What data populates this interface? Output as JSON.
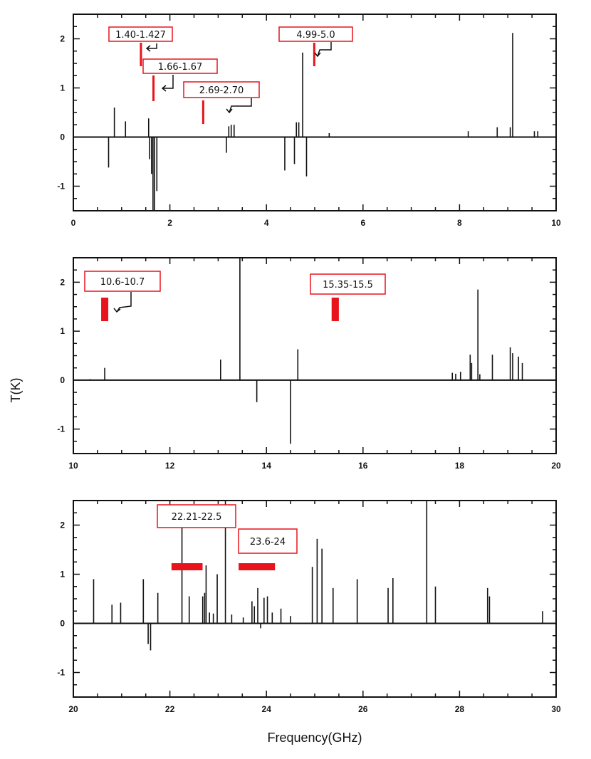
{
  "ylabel": "T(K)",
  "xlabel": "Frequency(GHz)",
  "annotation_color": "#e8141b",
  "chart_data": [
    {
      "type": "bar",
      "xlim": [
        0,
        10
      ],
      "ylim": [
        -1.5,
        2.5
      ],
      "x_ticks": [
        "0",
        "2",
        "4",
        "6",
        "8",
        "10"
      ],
      "y_ticks": [
        "2",
        "1",
        "0",
        "-1"
      ],
      "lines": [
        [
          0.73,
          -0.62
        ],
        [
          0.85,
          0.6
        ],
        [
          1.08,
          0.32
        ],
        [
          1.56,
          0.38
        ],
        [
          1.58,
          -0.45
        ],
        [
          1.62,
          -0.75
        ],
        [
          1.65,
          -1.5
        ],
        [
          1.68,
          -1.5
        ],
        [
          1.73,
          -1.1
        ],
        [
          3.17,
          -0.32
        ],
        [
          3.22,
          0.22
        ],
        [
          3.27,
          0.25
        ],
        [
          3.33,
          0.25
        ],
        [
          4.38,
          -0.68
        ],
        [
          4.58,
          -0.55
        ],
        [
          4.62,
          0.3
        ],
        [
          4.67,
          0.3
        ],
        [
          4.75,
          1.72
        ],
        [
          4.83,
          -0.8
        ],
        [
          5.3,
          0.08
        ],
        [
          8.18,
          0.12
        ],
        [
          8.78,
          0.2
        ],
        [
          9.05,
          0.2
        ],
        [
          9.1,
          2.12
        ],
        [
          9.55,
          0.12
        ],
        [
          9.62,
          0.12
        ]
      ],
      "bands": [
        {
          "label": "1.40-1.427",
          "range": [
            1.4,
            1.427
          ]
        },
        {
          "label": "1.66-1.67",
          "range": [
            1.66,
            1.67
          ]
        },
        {
          "label": "2.69-2.70",
          "range": [
            2.69,
            2.7
          ]
        },
        {
          "label": "4.99-5.0",
          "range": [
            4.99,
            5.0
          ]
        }
      ]
    },
    {
      "type": "bar",
      "xlim": [
        10,
        20
      ],
      "ylim": [
        -1.5,
        2.5
      ],
      "x_ticks": [
        "10",
        "12",
        "14",
        "16",
        "18",
        "20"
      ],
      "y_ticks": [
        "2",
        "1",
        "0",
        "-1"
      ],
      "lines": [
        [
          10.35,
          0.02
        ],
        [
          10.65,
          0.25
        ],
        [
          13.05,
          0.42
        ],
        [
          13.45,
          2.5
        ],
        [
          13.8,
          -0.45
        ],
        [
          14.5,
          -1.3
        ],
        [
          14.65,
          0.63
        ],
        [
          17.85,
          0.15
        ],
        [
          17.92,
          0.13
        ],
        [
          18.02,
          0.17
        ],
        [
          18.22,
          0.52
        ],
        [
          18.25,
          0.35
        ],
        [
          18.38,
          1.85
        ],
        [
          18.42,
          0.12
        ],
        [
          18.68,
          0.52
        ],
        [
          19.05,
          0.67
        ],
        [
          19.1,
          0.55
        ],
        [
          19.22,
          0.48
        ],
        [
          19.3,
          0.35
        ]
      ],
      "bands": [
        {
          "label": "10.6-10.7",
          "range": [
            10.6,
            10.7
          ]
        },
        {
          "label": "15.35-15.5",
          "range": [
            15.35,
            15.5
          ]
        }
      ]
    },
    {
      "type": "bar",
      "xlim": [
        20,
        30
      ],
      "ylim": [
        -1.5,
        2.5
      ],
      "x_ticks": [
        "20",
        "22",
        "24",
        "26",
        "28",
        "30"
      ],
      "y_ticks": [
        "2",
        "1",
        "0",
        "-1"
      ],
      "lines": [
        [
          20.42,
          0.9
        ],
        [
          20.8,
          0.38
        ],
        [
          20.98,
          0.42
        ],
        [
          21.45,
          0.9
        ],
        [
          21.55,
          -0.42
        ],
        [
          21.6,
          -0.55
        ],
        [
          21.75,
          0.62
        ],
        [
          22.25,
          2.0
        ],
        [
          22.4,
          0.55
        ],
        [
          22.68,
          0.55
        ],
        [
          22.72,
          0.62
        ],
        [
          22.75,
          1.18
        ],
        [
          22.82,
          0.22
        ],
        [
          22.9,
          0.2
        ],
        [
          22.98,
          1.0
        ],
        [
          23.15,
          2.5
        ],
        [
          23.28,
          0.18
        ],
        [
          23.52,
          0.12
        ],
        [
          23.7,
          0.45
        ],
        [
          23.75,
          0.35
        ],
        [
          23.82,
          0.72
        ],
        [
          23.88,
          -0.1
        ],
        [
          23.95,
          0.52
        ],
        [
          24.02,
          0.55
        ],
        [
          24.12,
          0.22
        ],
        [
          24.3,
          0.3
        ],
        [
          24.5,
          0.15
        ],
        [
          24.95,
          1.15
        ],
        [
          25.05,
          1.72
        ],
        [
          25.15,
          1.52
        ],
        [
          25.38,
          0.72
        ],
        [
          25.88,
          0.9
        ],
        [
          26.52,
          0.72
        ],
        [
          26.62,
          0.92
        ],
        [
          27.32,
          2.5
        ],
        [
          27.5,
          0.75
        ],
        [
          28.58,
          0.72
        ],
        [
          28.62,
          0.55
        ],
        [
          29.72,
          0.25
        ]
      ],
      "bands": [
        {
          "label": "22.21-22.5",
          "range": [
            22.21,
            22.5
          ]
        },
        {
          "label": "23.6-24",
          "range": [
            23.6,
            24.0
          ]
        }
      ]
    }
  ]
}
